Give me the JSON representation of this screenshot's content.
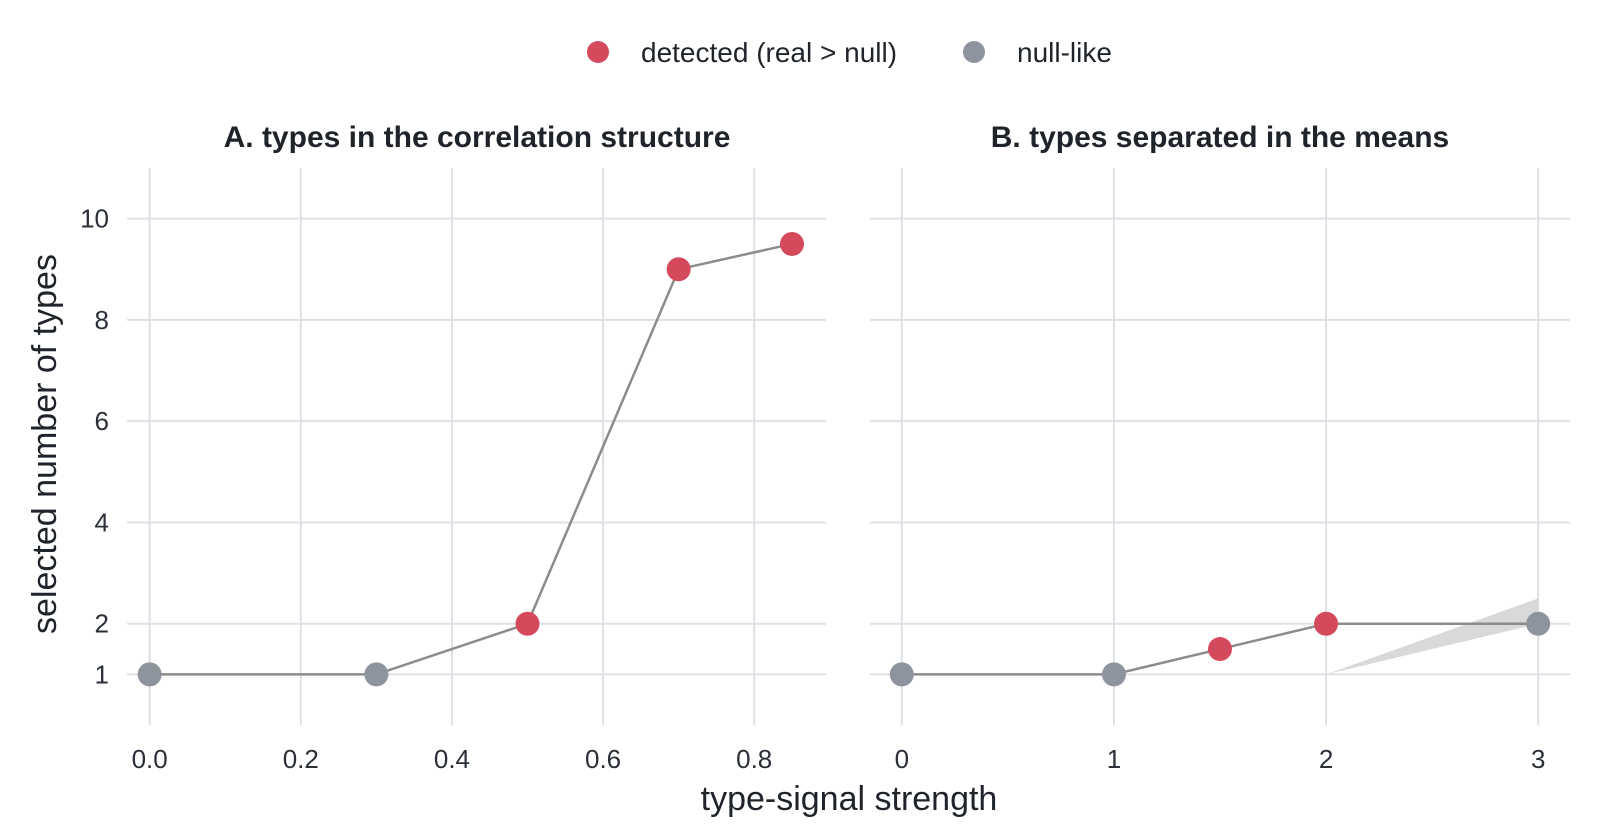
{
  "legend": [
    {
      "label": "detected (real > null)",
      "color": "#d44a5c"
    },
    {
      "label": "null-like",
      "color": "#8e949e"
    }
  ],
  "chart_data": {
    "type": "line",
    "ylabel": "selected number of types",
    "xlabel": "type-signal strength",
    "yticks": [
      1,
      2,
      4,
      6,
      8,
      10
    ],
    "ylim": [
      0,
      11
    ],
    "legend_position": "top",
    "grid": true,
    "line_color": "#8c8c8c",
    "band_color": "#d9d9d9",
    "panels": [
      {
        "title": "A. types in the correlation structure",
        "xlim": [
          -0.03,
          0.895
        ],
        "xticks": [
          0.0,
          0.2,
          0.4,
          0.6,
          0.8
        ],
        "xtick_labels": [
          "0.0",
          "0.2",
          "0.4",
          "0.6",
          "0.8"
        ],
        "points": [
          {
            "x": 0.0,
            "y": 1,
            "status": "null-like"
          },
          {
            "x": 0.3,
            "y": 1,
            "status": "null-like"
          },
          {
            "x": 0.5,
            "y": 2,
            "status": "detected"
          },
          {
            "x": 0.7,
            "y": 9,
            "status": "detected"
          },
          {
            "x": 0.85,
            "y": 9.5,
            "status": "detected"
          }
        ]
      },
      {
        "title": "B. types separated in the means",
        "xlim": [
          -0.15,
          3.15
        ],
        "xticks": [
          0,
          1,
          2,
          3
        ],
        "xtick_labels": [
          "0",
          "1",
          "2",
          "3"
        ],
        "points": [
          {
            "x": 0,
            "y": 1,
            "status": "null-like"
          },
          {
            "x": 1,
            "y": 1,
            "status": "null-like"
          },
          {
            "x": 1.5,
            "y": 1.5,
            "status": "detected"
          },
          {
            "x": 2,
            "y": 2,
            "status": "detected"
          },
          {
            "x": 3,
            "y": 2,
            "status": "null-like"
          }
        ],
        "band": {
          "x": [
            2,
            3
          ],
          "lower": [
            1,
            2
          ],
          "upper": [
            1,
            2.5
          ]
        }
      }
    ]
  }
}
